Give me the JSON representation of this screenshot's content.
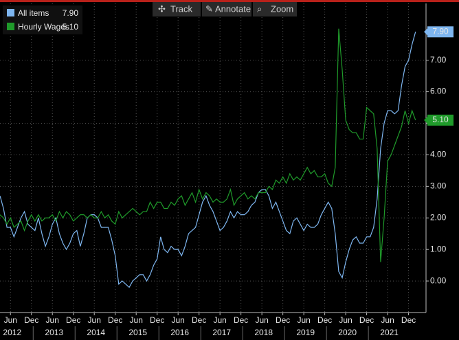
{
  "toolbar": [
    "Track",
    "Annotate",
    "Zoom"
  ],
  "chart_data": {
    "type": "line",
    "x": [
      "2012-03",
      "2012-04",
      "2012-05",
      "2012-06",
      "2012-07",
      "2012-08",
      "2012-09",
      "2012-10",
      "2012-11",
      "2012-12",
      "2013-01",
      "2013-02",
      "2013-03",
      "2013-04",
      "2013-05",
      "2013-06",
      "2013-07",
      "2013-08",
      "2013-09",
      "2013-10",
      "2013-11",
      "2013-12",
      "2014-01",
      "2014-02",
      "2014-03",
      "2014-04",
      "2014-05",
      "2014-06",
      "2014-07",
      "2014-08",
      "2014-09",
      "2014-10",
      "2014-11",
      "2014-12",
      "2015-01",
      "2015-02",
      "2015-03",
      "2015-04",
      "2015-05",
      "2015-06",
      "2015-07",
      "2015-08",
      "2015-09",
      "2015-10",
      "2015-11",
      "2015-12",
      "2016-01",
      "2016-02",
      "2016-03",
      "2016-04",
      "2016-05",
      "2016-06",
      "2016-07",
      "2016-08",
      "2016-09",
      "2016-10",
      "2016-11",
      "2016-12",
      "2017-01",
      "2017-02",
      "2017-03",
      "2017-04",
      "2017-05",
      "2017-06",
      "2017-07",
      "2017-08",
      "2017-09",
      "2017-10",
      "2017-11",
      "2017-12",
      "2018-01",
      "2018-02",
      "2018-03",
      "2018-04",
      "2018-05",
      "2018-06",
      "2018-07",
      "2018-08",
      "2018-09",
      "2018-10",
      "2018-11",
      "2018-12",
      "2019-01",
      "2019-02",
      "2019-03",
      "2019-04",
      "2019-05",
      "2019-06",
      "2019-07",
      "2019-08",
      "2019-09",
      "2019-10",
      "2019-11",
      "2019-12",
      "2020-01",
      "2020-02",
      "2020-03",
      "2020-04",
      "2020-05",
      "2020-06",
      "2020-07",
      "2020-08",
      "2020-09",
      "2020-10",
      "2020-11",
      "2020-12",
      "2021-01",
      "2021-02",
      "2021-03",
      "2021-04",
      "2021-05",
      "2021-06",
      "2021-07",
      "2021-08",
      "2021-09",
      "2021-10",
      "2021-11",
      "2021-12",
      "2022-01",
      "2022-02"
    ],
    "series": [
      {
        "name": "All items",
        "color": "#7eb6f0",
        "last_label": "7.90",
        "values": [
          2.7,
          2.3,
          1.7,
          1.7,
          1.4,
          1.7,
          2.0,
          2.2,
          1.8,
          1.7,
          1.6,
          2.0,
          1.5,
          1.1,
          1.4,
          1.8,
          2.0,
          1.5,
          1.2,
          1.0,
          1.2,
          1.5,
          1.6,
          1.1,
          1.5,
          2.0,
          2.1,
          2.1,
          2.0,
          1.7,
          1.7,
          1.7,
          1.3,
          0.8,
          -0.1,
          0.0,
          -0.1,
          -0.2,
          0.0,
          0.1,
          0.2,
          0.2,
          0.0,
          0.2,
          0.5,
          0.7,
          1.4,
          1.0,
          0.9,
          1.1,
          1.0,
          1.0,
          0.8,
          1.1,
          1.5,
          1.6,
          1.7,
          2.1,
          2.5,
          2.7,
          2.4,
          2.2,
          1.9,
          1.6,
          1.7,
          1.9,
          2.2,
          2.0,
          2.2,
          2.1,
          2.1,
          2.2,
          2.4,
          2.5,
          2.8,
          2.9,
          2.9,
          2.7,
          2.3,
          2.5,
          2.2,
          1.9,
          1.6,
          1.5,
          1.9,
          2.0,
          1.8,
          1.6,
          1.8,
          1.7,
          1.7,
          1.8,
          2.1,
          2.3,
          2.5,
          2.3,
          1.5,
          0.3,
          0.1,
          0.6,
          1.0,
          1.3,
          1.4,
          1.2,
          1.2,
          1.4,
          1.4,
          1.7,
          2.6,
          4.2,
          5.0,
          5.4,
          5.4,
          5.3,
          5.4,
          6.2,
          6.8,
          7.0,
          7.5,
          7.9
        ]
      },
      {
        "name": "Hourly Wages",
        "color": "#1f9a2a",
        "last_label": "5.10",
        "values": [
          2.1,
          2.0,
          1.8,
          2.0,
          1.7,
          1.8,
          1.9,
          1.6,
          1.9,
          2.1,
          1.9,
          2.1,
          1.9,
          2.0,
          2.0,
          2.1,
          1.9,
          2.2,
          2.0,
          2.2,
          2.1,
          1.9,
          2.0,
          2.1,
          2.1,
          2.0,
          2.1,
          2.0,
          2.0,
          2.2,
          2.0,
          2.1,
          1.9,
          1.8,
          2.2,
          2.0,
          2.1,
          2.2,
          2.3,
          2.2,
          2.1,
          2.2,
          2.2,
          2.5,
          2.3,
          2.5,
          2.5,
          2.3,
          2.3,
          2.5,
          2.4,
          2.6,
          2.7,
          2.4,
          2.6,
          2.8,
          2.5,
          2.9,
          2.6,
          2.8,
          2.7,
          2.5,
          2.6,
          2.5,
          2.5,
          2.6,
          2.9,
          2.4,
          2.6,
          2.7,
          2.8,
          2.6,
          2.7,
          2.6,
          2.8,
          2.8,
          2.8,
          3.0,
          2.9,
          3.2,
          3.1,
          3.3,
          3.1,
          3.4,
          3.2,
          3.3,
          3.2,
          3.4,
          3.6,
          3.4,
          3.5,
          3.3,
          3.3,
          3.4,
          3.1,
          3.0,
          3.6,
          8.0,
          6.7,
          5.1,
          4.8,
          4.7,
          4.7,
          4.5,
          4.5,
          5.5,
          5.4,
          5.3,
          4.2,
          0.6,
          2.0,
          3.8,
          4.0,
          4.3,
          4.6,
          4.9,
          5.4,
          5.0,
          5.4,
          5.1
        ]
      }
    ],
    "xlim": [
      "2012-03",
      "2022-05"
    ],
    "xticks": [
      {
        "value": "2012-06",
        "label": "Jun"
      },
      {
        "value": "2012-12",
        "label": "Dec"
      },
      {
        "value": "2013-06",
        "label": "Jun"
      },
      {
        "value": "2013-12",
        "label": "Dec"
      },
      {
        "value": "2014-06",
        "label": "Jun"
      },
      {
        "value": "2014-12",
        "label": "Dec"
      },
      {
        "value": "2015-06",
        "label": "Jun"
      },
      {
        "value": "2015-12",
        "label": "Dec"
      },
      {
        "value": "2016-06",
        "label": "Jun"
      },
      {
        "value": "2016-12",
        "label": "Dec"
      },
      {
        "value": "2017-06",
        "label": "Jun"
      },
      {
        "value": "2017-12",
        "label": "Dec"
      },
      {
        "value": "2018-06",
        "label": "Jun"
      },
      {
        "value": "2018-12",
        "label": "Dec"
      },
      {
        "value": "2019-06",
        "label": "Jun"
      },
      {
        "value": "2019-12",
        "label": "Dec"
      },
      {
        "value": "2020-06",
        "label": "Jun"
      },
      {
        "value": "2020-12",
        "label": "Dec"
      },
      {
        "value": "2021-06",
        "label": "Jun"
      },
      {
        "value": "2021-12",
        "label": "Dec"
      }
    ],
    "year_labels": [
      "2012",
      "2013",
      "2014",
      "2015",
      "2016",
      "2017",
      "2018",
      "2019",
      "2020",
      "2021"
    ],
    "ylim": [
      -1,
      8.8
    ],
    "yticks": [
      {
        "value": 0,
        "label": "0.00"
      },
      {
        "value": 1,
        "label": "1.00"
      },
      {
        "value": 2,
        "label": "2.00"
      },
      {
        "value": 3,
        "label": "3.00"
      },
      {
        "value": 4,
        "label": "4.00"
      },
      {
        "value": 5,
        "label": "5.00"
      },
      {
        "value": 6,
        "label": "6.00"
      },
      {
        "value": 7,
        "label": "7.00"
      }
    ],
    "grid": true
  }
}
